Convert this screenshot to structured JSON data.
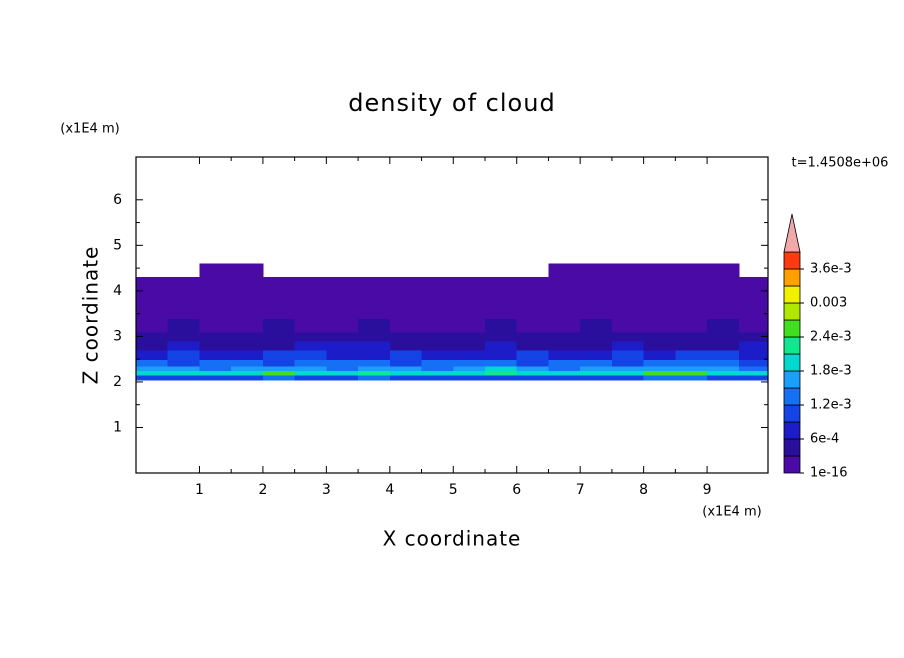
{
  "chart_data": {
    "type": "contour",
    "title": "density of cloud",
    "xlabel": "X coordinate",
    "ylabel": "Z coordinate",
    "x_unit": "(x1E4 m)",
    "y_unit": "(x1E4 m)",
    "annotation": "t=1.4508e+06",
    "xlim": [
      0,
      9.96
    ],
    "ylim": [
      0,
      6.94
    ],
    "xticks": [
      1,
      2,
      3,
      4,
      5,
      6,
      7,
      8,
      9
    ],
    "yticks": [
      1,
      2,
      3,
      4,
      5,
      6
    ],
    "x_edges": [
      0,
      0.5,
      1,
      1.5,
      2,
      2.5,
      3,
      3.5,
      4,
      4.5,
      5,
      5.5,
      6,
      6.5,
      7,
      7.5,
      8,
      8.5,
      9,
      9.5,
      9.96
    ],
    "y_edges": [
      2.05,
      2.15,
      2.25,
      2.35,
      2.5,
      2.7,
      2.9,
      3.1,
      3.4,
      3.7,
      4.0,
      4.3,
      4.6
    ],
    "z": [
      [
        0.0009,
        0.0009,
        0.001,
        0.0011,
        0.0013,
        0.001,
        0.0009,
        0.0012,
        0.001,
        0.0009,
        0.001,
        0.0009,
        0.0011,
        0.001,
        0.0009,
        0.001,
        0.0012,
        0.0013,
        0.001,
        0.0009
      ],
      [
        0.0019,
        0.002,
        0.0019,
        0.0018,
        0.0025,
        0.0019,
        0.0018,
        0.0021,
        0.0019,
        0.0018,
        0.0019,
        0.0022,
        0.0019,
        0.0018,
        0.0019,
        0.002,
        0.0024,
        0.0025,
        0.0019,
        0.0018
      ],
      [
        0.0015,
        0.0016,
        0.0014,
        0.0016,
        0.0017,
        0.0015,
        0.0014,
        0.0016,
        0.0015,
        0.0014,
        0.0016,
        0.0019,
        0.0015,
        0.0014,
        0.0015,
        0.0016,
        0.0017,
        0.0016,
        0.0015,
        0.0014
      ],
      [
        0.0012,
        0.0011,
        0.0013,
        0.0012,
        0.0011,
        0.0012,
        0.0013,
        0.0012,
        0.0011,
        0.0012,
        0.0013,
        0.0012,
        0.0011,
        0.0013,
        0.0012,
        0.0011,
        0.0012,
        0.0013,
        0.0012,
        0.0011
      ],
      [
        0.0008,
        0.0009,
        0.0007,
        0.0008,
        0.001,
        0.0009,
        0.0008,
        0.0007,
        0.0009,
        0.0008,
        0.0007,
        0.0008,
        0.0009,
        0.0008,
        0.0007,
        0.0009,
        0.0008,
        0.001,
        0.0009,
        0.0008
      ],
      [
        0.0005,
        0.0006,
        0.0005,
        0.0004,
        0.0005,
        0.0006,
        0.0007,
        0.0006,
        0.0005,
        0.0004,
        0.0005,
        0.0006,
        0.0005,
        0.0004,
        0.0005,
        0.0006,
        0.0005,
        0.0004,
        0.0005,
        0.0006
      ],
      [
        0.0004,
        0.00035,
        0.0004,
        0.00035,
        0.0004,
        0.0004,
        0.00035,
        0.0005,
        0.0004,
        0.00035,
        0.0004,
        0.00035,
        0.0004,
        0.00035,
        0.0004,
        0.0004,
        0.00035,
        0.0004,
        0.00035,
        0.0004
      ],
      [
        0.0002,
        0.00035,
        0.0002,
        0.0002,
        0.00035,
        0.0002,
        0.0002,
        0.00035,
        0.0002,
        0.0002,
        0.0002,
        0.00035,
        0.0002,
        0.0002,
        0.00035,
        0.0002,
        0.0002,
        0.0002,
        0.00035,
        0.0002
      ],
      [
        0.0002,
        0.0002,
        0.0001,
        0.0002,
        0.0002,
        0.0002,
        0.0001,
        0.0002,
        0.0002,
        0.0002,
        0.0002,
        0.0001,
        0.0002,
        0.0002,
        0.0002,
        0.0001,
        0.0002,
        0.0002,
        0.0002,
        0.0002
      ],
      [
        0.0001,
        0.0001,
        0.0001,
        0.0001,
        0.0001,
        0.0001,
        0.0001,
        0.0001,
        0.0001,
        0.0001,
        0.0001,
        0.0001,
        0.0001,
        0.0001,
        0.0001,
        0.0001,
        0.0001,
        0.0001,
        0.0001,
        0.0001
      ],
      [
        0.0001,
        0.0001,
        0.0001,
        0.0001,
        0.0001,
        0.0001,
        0.0001,
        0.0001,
        0.0001,
        0.0001,
        0.0001,
        0.0001,
        0.0001,
        0.0001,
        0.0001,
        0.0001,
        0.0001,
        0.0001,
        0.0001,
        0.0001
      ],
      [
        null,
        null,
        5e-05,
        5e-05,
        null,
        null,
        null,
        null,
        null,
        null,
        null,
        null,
        null,
        5e-05,
        5e-05,
        5e-05,
        5e-05,
        5e-05,
        5e-05,
        null
      ]
    ],
    "levels": [
      1e-16,
      0.0003,
      0.0006,
      0.0009,
      0.0012,
      0.0015,
      0.0018,
      0.0021,
      0.0024,
      0.0027,
      0.003,
      0.0033,
      0.0036,
      0.0039
    ],
    "colors": [
      "#4a0aa6",
      "#2a0f9c",
      "#1c1cc8",
      "#1444e6",
      "#1670f5",
      "#1aa0f8",
      "#00d8d0",
      "#10e890",
      "#40e020",
      "#b0e800",
      "#f0f000",
      "#ffa000",
      "#ff3a10"
    ],
    "extend_color": "#f0a8a8",
    "cbar_ticks": [
      {
        "value": 1e-16,
        "label": "1e-16"
      },
      {
        "value": 0.0006,
        "label": "6e-4"
      },
      {
        "value": 0.0012,
        "label": "1.2e-3"
      },
      {
        "value": 0.0018,
        "label": "1.8e-3"
      },
      {
        "value": 0.0024,
        "label": "2.4e-3"
      },
      {
        "value": 0.003,
        "label": "0.003"
      },
      {
        "value": 0.0036,
        "label": "3.6e-3"
      }
    ]
  }
}
